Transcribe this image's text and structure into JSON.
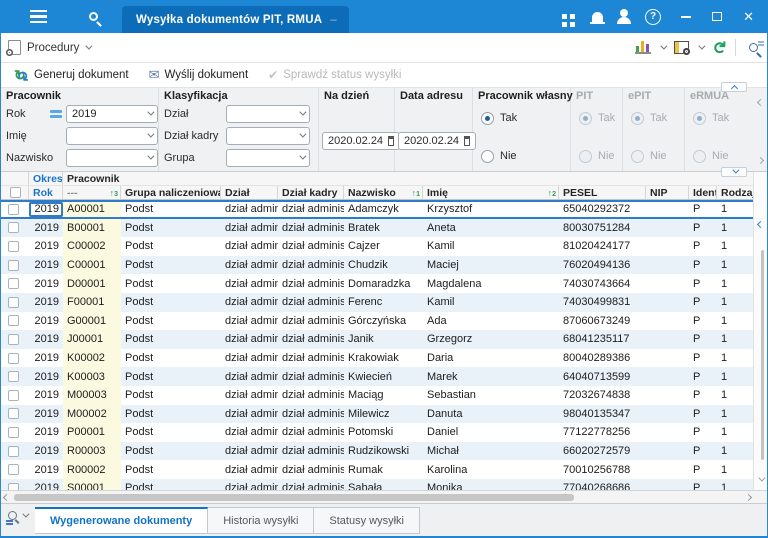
{
  "titlebar": {
    "tab_title": "Wysyłka dokumentów PIT, RMUA"
  },
  "menubar": {
    "procedury_label": "Procedury"
  },
  "actionbar": {
    "generate_label": "Generuj dokument",
    "send_label": "Wyślij dokument",
    "check_status_label": "Sprawdź status wysyłki"
  },
  "filters": {
    "group_pracownik": "Pracownik",
    "group_klasyfikacja": "Klasyfikacja",
    "rok_label": "Rok",
    "rok_value": "2019",
    "imie_label": "Imię",
    "imie_value": "",
    "nazwisko_label": "Nazwisko",
    "nazwisko_value": "",
    "dzial_label": "Dział",
    "dzial_value": "",
    "dzial_kadry_label": "Dział kadry",
    "dzial_kadry_value": "",
    "grupa_label": "Grupa",
    "grupa_value": "",
    "na_dzien_label": "Na dzień",
    "na_dzien_value": "2020.02.24",
    "data_adresu_label": "Data adresu",
    "data_adresu_value": "2020.02.24",
    "pracownik_wlasny_label": "Pracownik własny",
    "pit_label": "PIT",
    "epit_label": "ePIT",
    "ermua_label": "eRMUA",
    "tak": "Tak",
    "nie": "Nie"
  },
  "table": {
    "group_okres": "Okres",
    "group_pracownik": "Pracownik",
    "headers": {
      "rok": "Rok",
      "code": "---",
      "grupa": "Grupa naliczeniowa",
      "dzial": "Dział",
      "dzial_kadry": "Dział kadry",
      "nazwisko": "Nazwisko",
      "imie": "Imię",
      "pesel": "PESEL",
      "nip": "NIP",
      "identy": "Identy",
      "rodzaj": "Rodzaj dokumentu"
    },
    "sort_code": "3",
    "sort_nazwisko": "1",
    "sort_imie": "2",
    "rows": [
      {
        "rok": "2019",
        "code": "A00001",
        "grupa": "Podst",
        "dzial": "dział admin",
        "dzial_kadry": "dział adminis",
        "nazwisko": "Adamczyk",
        "imie": "Krzysztof",
        "pesel": "65040292372",
        "nip": "",
        "identy": "P",
        "rodzaj": "1"
      },
      {
        "rok": "2019",
        "code": "B00001",
        "grupa": "Podst",
        "dzial": "dział admin",
        "dzial_kadry": "dział adminis",
        "nazwisko": "Bratek",
        "imie": "Aneta",
        "pesel": "80030751284",
        "nip": "",
        "identy": "P",
        "rodzaj": "1"
      },
      {
        "rok": "2019",
        "code": "C00002",
        "grupa": "Podst",
        "dzial": "dział admin",
        "dzial_kadry": "dział adminis",
        "nazwisko": "Cajzer",
        "imie": "Kamil",
        "pesel": "81020424177",
        "nip": "",
        "identy": "P",
        "rodzaj": "1"
      },
      {
        "rok": "2019",
        "code": "C00001",
        "grupa": "Podst",
        "dzial": "dział admin",
        "dzial_kadry": "dział adminis",
        "nazwisko": "Chudzik",
        "imie": "Maciej",
        "pesel": "76020494136",
        "nip": "",
        "identy": "P",
        "rodzaj": "1"
      },
      {
        "rok": "2019",
        "code": "D00001",
        "grupa": "Podst",
        "dzial": "dział admin",
        "dzial_kadry": "dział adminis",
        "nazwisko": "Domaradzka",
        "imie": "Magdalena",
        "pesel": "74030743664",
        "nip": "",
        "identy": "P",
        "rodzaj": "1"
      },
      {
        "rok": "2019",
        "code": "F00001",
        "grupa": "Podst",
        "dzial": "dział admin",
        "dzial_kadry": "dział adminis",
        "nazwisko": "Ferenc",
        "imie": "Kamil",
        "pesel": "74030499831",
        "nip": "",
        "identy": "P",
        "rodzaj": "1"
      },
      {
        "rok": "2019",
        "code": "G00001",
        "grupa": "Podst",
        "dzial": "dział admin",
        "dzial_kadry": "dział adminis",
        "nazwisko": "Górczyńska",
        "imie": "Ada",
        "pesel": "87060673249",
        "nip": "",
        "identy": "P",
        "rodzaj": "1"
      },
      {
        "rok": "2019",
        "code": "J00001",
        "grupa": "Podst",
        "dzial": "dział admin",
        "dzial_kadry": "dział adminis",
        "nazwisko": "Janik",
        "imie": "Grzegorz",
        "pesel": "68041235117",
        "nip": "",
        "identy": "P",
        "rodzaj": "1"
      },
      {
        "rok": "2019",
        "code": "K00002",
        "grupa": "Podst",
        "dzial": "dział admin",
        "dzial_kadry": "dział adminis",
        "nazwisko": "Krakowiak",
        "imie": "Daria",
        "pesel": "80040289386",
        "nip": "",
        "identy": "P",
        "rodzaj": "1"
      },
      {
        "rok": "2019",
        "code": "K00003",
        "grupa": "Podst",
        "dzial": "dział admin",
        "dzial_kadry": "dział adminis",
        "nazwisko": "Kwiecień",
        "imie": "Marek",
        "pesel": "64040713599",
        "nip": "",
        "identy": "P",
        "rodzaj": "1"
      },
      {
        "rok": "2019",
        "code": "M00003",
        "grupa": "Podst",
        "dzial": "dział admin",
        "dzial_kadry": "dział adminis",
        "nazwisko": "Maciąg",
        "imie": "Sebastian",
        "pesel": "72032674838",
        "nip": "",
        "identy": "P",
        "rodzaj": "1"
      },
      {
        "rok": "2019",
        "code": "M00002",
        "grupa": "Podst",
        "dzial": "dział admin",
        "dzial_kadry": "dział adminis",
        "nazwisko": "Milewicz",
        "imie": "Danuta",
        "pesel": "98040135347",
        "nip": "",
        "identy": "P",
        "rodzaj": "1"
      },
      {
        "rok": "2019",
        "code": "P00001",
        "grupa": "Podst",
        "dzial": "dział admin",
        "dzial_kadry": "dział adminis",
        "nazwisko": "Potomski",
        "imie": "Daniel",
        "pesel": "77122778256",
        "nip": "",
        "identy": "P",
        "rodzaj": "1"
      },
      {
        "rok": "2019",
        "code": "R00003",
        "grupa": "Podst",
        "dzial": "dział admin",
        "dzial_kadry": "dział adminis",
        "nazwisko": "Rudzikowski",
        "imie": "Michał",
        "pesel": "66020272579",
        "nip": "",
        "identy": "P",
        "rodzaj": "1"
      },
      {
        "rok": "2019",
        "code": "R00002",
        "grupa": "Podst",
        "dzial": "dział admin",
        "dzial_kadry": "dział adminis",
        "nazwisko": "Rumak",
        "imie": "Karolina",
        "pesel": "70010256788",
        "nip": "",
        "identy": "P",
        "rodzaj": "1"
      },
      {
        "rok": "2019",
        "code": "S00001",
        "grupa": "Podst",
        "dzial": "dział admin",
        "dzial_kadry": "dział adminis",
        "nazwisko": "Sabała",
        "imie": "Monika",
        "pesel": "77040268686",
        "nip": "",
        "identy": "P",
        "rodzaj": "1"
      }
    ]
  },
  "bottom_tabs": {
    "tab_generated": "Wygenerowane dokumenty",
    "tab_history": "Historia wysyłki",
    "tab_statuses": "Statusy wysyłki"
  }
}
